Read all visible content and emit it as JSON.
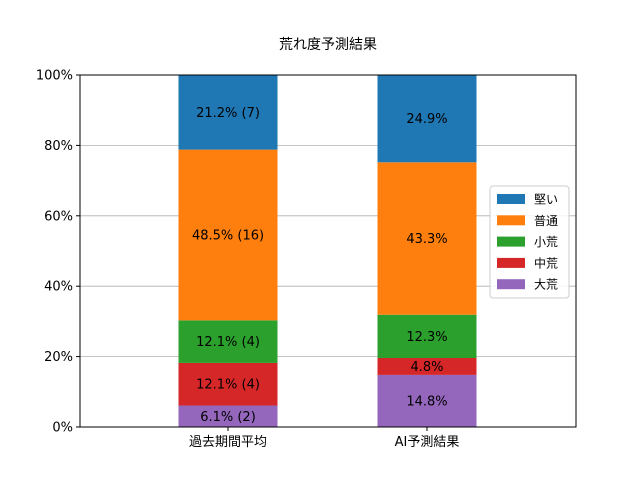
{
  "chart_data": {
    "type": "bar",
    "stacked": true,
    "title": "荒れ度予測結果",
    "xlabel": "",
    "ylabel": "",
    "categories": [
      "過去期間平均",
      "AI予測結果"
    ],
    "ylim": [
      0,
      100
    ],
    "yticks": [
      0,
      20,
      40,
      60,
      80,
      100
    ],
    "ytick_labels": [
      "0%",
      "20%",
      "40%",
      "60%",
      "80%",
      "100%"
    ],
    "grid": "y",
    "legend_position": "right",
    "series": [
      {
        "name": "大荒",
        "color": "#9467bd",
        "values": [
          6.1,
          14.8
        ],
        "labels": [
          "6.1% (2)",
          "14.8%"
        ]
      },
      {
        "name": "中荒",
        "color": "#d62728",
        "values": [
          12.1,
          4.8
        ],
        "labels": [
          "12.1% (4)",
          "4.8%"
        ]
      },
      {
        "name": "小荒",
        "color": "#2ca02c",
        "values": [
          12.1,
          12.3
        ],
        "labels": [
          "12.1% (4)",
          "12.3%"
        ]
      },
      {
        "name": "普通",
        "color": "#ff7f0e",
        "values": [
          48.5,
          43.3
        ],
        "labels": [
          "48.5% (16)",
          "43.3%"
        ]
      },
      {
        "name": "堅い",
        "color": "#1f77b4",
        "values": [
          21.2,
          24.9
        ],
        "labels": [
          "21.2% (7)",
          "24.9%"
        ]
      }
    ],
    "legend_order": [
      "堅い",
      "普通",
      "小荒",
      "中荒",
      "大荒"
    ]
  }
}
